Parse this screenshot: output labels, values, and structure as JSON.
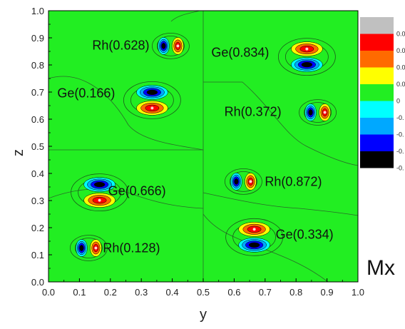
{
  "chart_data": {
    "type": "heatmap",
    "panel_label": "Mx",
    "xlabel": "y",
    "ylabel": "z",
    "xlim": [
      0.0,
      1.0
    ],
    "ylim": [
      0.0,
      1.0
    ],
    "xticks": [
      "0.0",
      "0.1",
      "0.2",
      "0.3",
      "0.4",
      "0.5",
      "0.6",
      "0.7",
      "0.8",
      "0.9",
      "1.0"
    ],
    "yticks": [
      "0.0",
      "0.1",
      "0.2",
      "0.3",
      "0.4",
      "0.5",
      "0.6",
      "0.7",
      "0.8",
      "0.9",
      "1.0"
    ],
    "background_color": "#22ee22",
    "atoms": [
      {
        "label": "Rh(0.628)",
        "y": 0.395,
        "z": 0.87,
        "dipole": "horizontal",
        "positive_side": "right"
      },
      {
        "label": "Ge(0.834)",
        "y": 0.835,
        "z": 0.83,
        "dipole": "vertical",
        "positive_side": "top"
      },
      {
        "label": "Ge(0.166)",
        "y": 0.335,
        "z": 0.67,
        "dipole": "vertical",
        "positive_side": "bottom"
      },
      {
        "label": "Rh(0.372)",
        "y": 0.87,
        "z": 0.625,
        "dipole": "horizontal",
        "positive_side": "right"
      },
      {
        "label": "Ge(0.666)",
        "y": 0.165,
        "z": 0.33,
        "dipole": "vertical",
        "positive_side": "bottom"
      },
      {
        "label": "Rh(0.872)",
        "y": 0.63,
        "z": 0.37,
        "dipole": "horizontal",
        "positive_side": "right"
      },
      {
        "label": "Rh(0.128)",
        "y": 0.13,
        "z": 0.125,
        "dipole": "horizontal",
        "positive_side": "right"
      },
      {
        "label": "Ge(0.334)",
        "y": 0.665,
        "z": 0.165,
        "dipole": "vertical",
        "positive_side": "top"
      }
    ],
    "colorbar": {
      "levels": [
        {
          "label": "0.0",
          "color": "#c0c0c0"
        },
        {
          "label": "0.0",
          "color": "#ff0000"
        },
        {
          "label": "0.0",
          "color": "#ff6a00"
        },
        {
          "label": "0.0",
          "color": "#ffff00"
        },
        {
          "label": "0",
          "color": "#22ee22"
        },
        {
          "label": "-0.",
          "color": "#00ffff"
        },
        {
          "label": "-0.",
          "color": "#00a8ff"
        },
        {
          "label": "-0.",
          "color": "#0000ff"
        },
        {
          "label": "-0.",
          "color": "#000000"
        }
      ]
    }
  }
}
